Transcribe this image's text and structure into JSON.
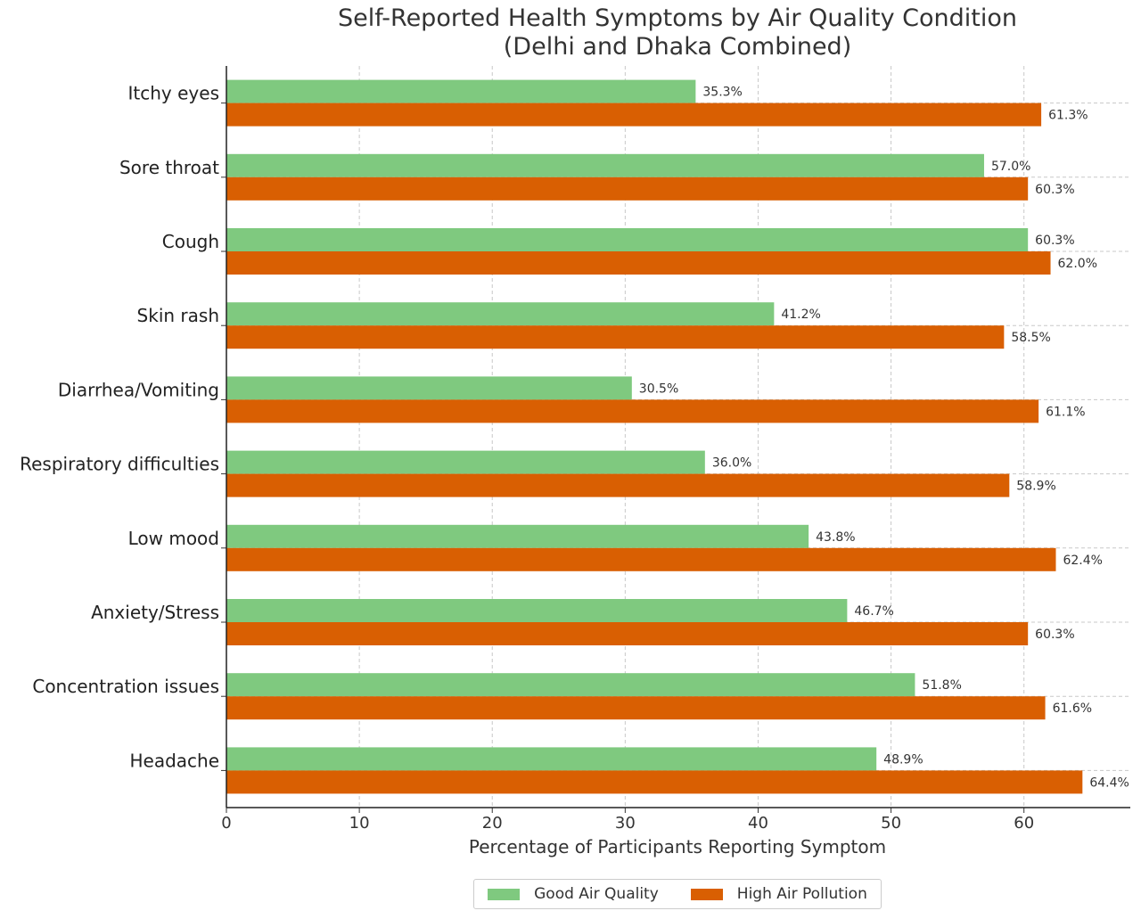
{
  "chart_data": {
    "type": "bar",
    "orientation": "horizontal",
    "title": "Self-Reported Health Symptoms by Air Quality Condition",
    "subtitle": "(Delhi and Dhaka Combined)",
    "xlabel": "Percentage of Participants Reporting Symptom",
    "ylabel": "",
    "xlim": [
      0,
      68
    ],
    "xticks": [
      0,
      10,
      20,
      30,
      40,
      50,
      60
    ],
    "grid": true,
    "legend_position": "bottom-center",
    "categories": [
      "Itchy eyes",
      "Sore throat",
      "Cough",
      "Skin rash",
      "Diarrhea/Vomiting",
      "Respiratory difficulties",
      "Low mood",
      "Anxiety/Stress",
      "Concentration issues",
      "Headache"
    ],
    "series": [
      {
        "name": "Good Air Quality",
        "color": "#7fc97f",
        "values": [
          35.3,
          57.0,
          60.3,
          41.2,
          30.5,
          36.0,
          43.8,
          46.7,
          51.8,
          48.9
        ],
        "labels": [
          "35.3%",
          "57.0%",
          "60.3%",
          "41.2%",
          "30.5%",
          "36.0%",
          "43.8%",
          "46.7%",
          "51.8%",
          "48.9%"
        ]
      },
      {
        "name": "High Air Pollution",
        "color": "#d95f02",
        "values": [
          61.3,
          60.3,
          62.0,
          58.5,
          61.1,
          58.9,
          62.4,
          60.3,
          61.6,
          64.4
        ],
        "labels": [
          "61.3%",
          "60.3%",
          "62.0%",
          "58.5%",
          "61.1%",
          "58.9%",
          "62.4%",
          "60.3%",
          "61.6%",
          "64.4%"
        ]
      }
    ]
  }
}
